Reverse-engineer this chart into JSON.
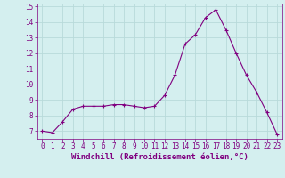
{
  "x": [
    0,
    1,
    2,
    3,
    4,
    5,
    6,
    7,
    8,
    9,
    10,
    11,
    12,
    13,
    14,
    15,
    16,
    17,
    18,
    19,
    20,
    21,
    22,
    23
  ],
  "y": [
    7.0,
    6.9,
    7.6,
    8.4,
    8.6,
    8.6,
    8.6,
    8.7,
    8.7,
    8.6,
    8.5,
    8.6,
    9.3,
    10.6,
    12.6,
    13.2,
    14.3,
    14.8,
    13.5,
    12.0,
    10.6,
    9.5,
    8.2,
    6.8
  ],
  "line_color": "#800080",
  "marker": "+",
  "marker_color": "#800080",
  "xlabel": "Windchill (Refroidissement éolien,°C)",
  "ylim": [
    6.5,
    15.2
  ],
  "xlim": [
    -0.5,
    23.5
  ],
  "yticks": [
    7,
    8,
    9,
    10,
    11,
    12,
    13,
    14,
    15
  ],
  "xtick_labels": [
    "0",
    "1",
    "2",
    "3",
    "4",
    "5",
    "6",
    "7",
    "8",
    "9",
    "10",
    "11",
    "12",
    "13",
    "14",
    "15",
    "16",
    "17",
    "18",
    "19",
    "20",
    "21",
    "22",
    "23"
  ],
  "bg_color": "#d4efef",
  "grid_color": "#b8dada",
  "xlabel_fontsize": 6.5,
  "tick_fontsize": 5.5,
  "line_width": 0.8,
  "marker_size": 3.5
}
